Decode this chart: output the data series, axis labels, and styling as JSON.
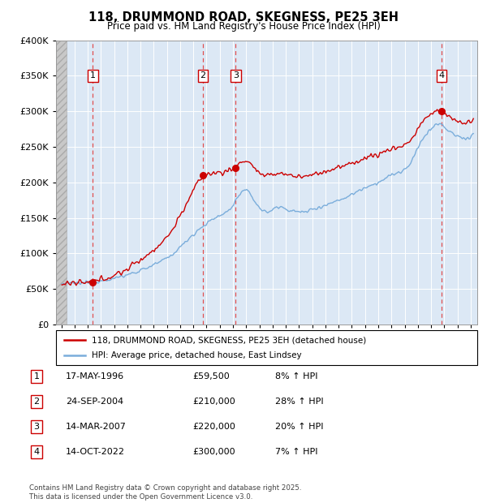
{
  "title": "118, DRUMMOND ROAD, SKEGNESS, PE25 3EH",
  "subtitle": "Price paid vs. HM Land Registry's House Price Index (HPI)",
  "legend_line1": "118, DRUMMOND ROAD, SKEGNESS, PE25 3EH (detached house)",
  "legend_line2": "HPI: Average price, detached house, East Lindsey",
  "footer": "Contains HM Land Registry data © Crown copyright and database right 2025.\nThis data is licensed under the Open Government Licence v3.0.",
  "transactions": [
    {
      "num": 1,
      "date": "17-MAY-1996",
      "price": 59500,
      "pct": "8%",
      "dir": "↑",
      "year_x": 1996.38
    },
    {
      "num": 2,
      "date": "24-SEP-2004",
      "price": 210000,
      "pct": "28%",
      "dir": "↑",
      "year_x": 2004.73
    },
    {
      "num": 3,
      "date": "14-MAR-2007",
      "price": 220000,
      "pct": "20%",
      "dir": "↑",
      "year_x": 2007.2
    },
    {
      "num": 4,
      "date": "14-OCT-2022",
      "price": 300000,
      "pct": "7%",
      "dir": "↑",
      "year_x": 2022.79
    }
  ],
  "hpi_color": "#7aaddb",
  "price_color": "#cc0000",
  "dashed_color": "#e05050",
  "background_chart": "#dce8f5",
  "ylim": [
    0,
    400000
  ],
  "yticks": [
    0,
    50000,
    100000,
    150000,
    200000,
    250000,
    300000,
    350000,
    400000
  ],
  "xlim_start": 1993.6,
  "xlim_end": 2025.5,
  "hatch_end": 1994.42
}
